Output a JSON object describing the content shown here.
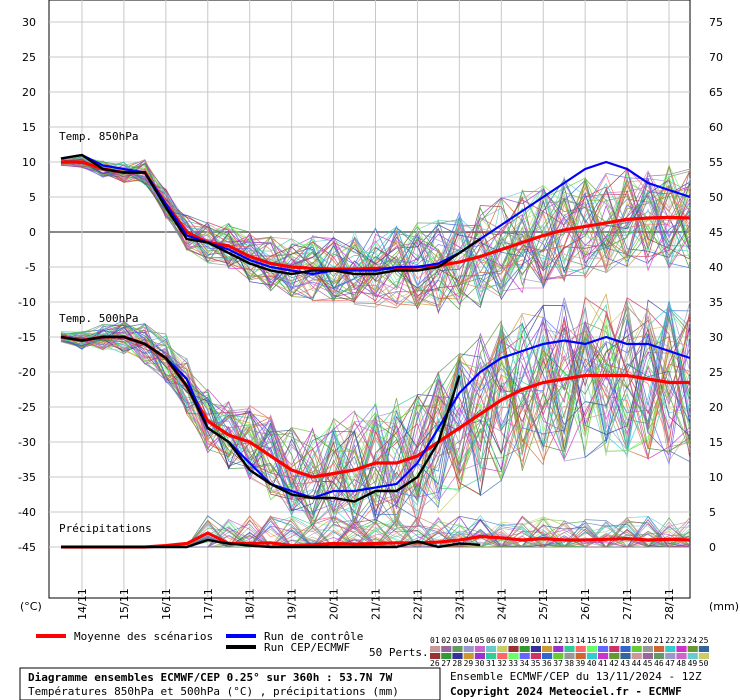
{
  "chart_data": {
    "type": "line",
    "left_axis_unit": "(°C)",
    "right_axis_unit": "(mm)",
    "left_ticks": [
      30,
      25,
      20,
      15,
      10,
      5,
      0,
      -5,
      -10,
      -15,
      -20,
      -25,
      -30,
      -35,
      -40,
      -45
    ],
    "right_ticks": [
      75,
      70,
      65,
      60,
      55,
      50,
      45,
      40,
      35,
      30,
      25,
      20,
      15,
      10,
      5,
      0
    ],
    "x_labels": [
      "14/11",
      "15/11",
      "16/11",
      "17/11",
      "18/11",
      "19/11",
      "20/11",
      "21/11",
      "22/11",
      "23/11",
      "24/11",
      "25/11",
      "26/11",
      "27/11",
      "28/11"
    ],
    "panels": {
      "t850": "Temp. 850hPa",
      "t500": "Temp. 500hPa",
      "precip": "Précipitations"
    },
    "x_hours": [
      0,
      12,
      24,
      36,
      48,
      60,
      72,
      84,
      96,
      108,
      120,
      132,
      144,
      156,
      168,
      180,
      192,
      204,
      216,
      228,
      240,
      252,
      264,
      276,
      288,
      300,
      312,
      324,
      336,
      348,
      360
    ],
    "series": [
      {
        "name": "Moyenne des scénarios",
        "color": "#ff0000",
        "panel": "t850",
        "values": [
          10,
          10,
          9,
          8.5,
          8.5,
          4,
          0,
          -1.5,
          -2,
          -3.5,
          -4.5,
          -5,
          -5.2,
          -5.3,
          -5.3,
          -5.2,
          -5.2,
          -5.0,
          -4.8,
          -4.3,
          -3.5,
          -2.5,
          -1.5,
          -0.5,
          0.3,
          0.8,
          1.3,
          1.8,
          2.0,
          2.1,
          2.0
        ]
      },
      {
        "name": "Run de contrôle",
        "color": "#0000ff",
        "panel": "t850",
        "values": [
          10.5,
          11,
          9.5,
          9,
          8.5,
          4,
          -0.5,
          -1.5,
          -2.5,
          -4,
          -5,
          -5.5,
          -6,
          -5.5,
          -5.5,
          -5.5,
          -5,
          -5,
          -4.5,
          -3,
          -1,
          1,
          3,
          5,
          7,
          9,
          10,
          9,
          7,
          6,
          5
        ]
      },
      {
        "name": "Run CEP/ECMWF",
        "color": "#000000",
        "panel": "t850",
        "values": [
          10.5,
          11,
          9,
          8.5,
          8.5,
          3.5,
          -1,
          -1.5,
          -3,
          -4.5,
          -5.5,
          -6,
          -5.5,
          -5.5,
          -6,
          -6,
          -5.5,
          -5.5,
          -5,
          -3,
          -1
        ]
      },
      {
        "name": "Moyenne des scénarios",
        "color": "#ff0000",
        "panel": "t500",
        "values": [
          -15,
          -15.5,
          -15,
          -15,
          -16,
          -18,
          -22,
          -27,
          -29,
          -30,
          -32,
          -34,
          -35,
          -34.5,
          -34,
          -33,
          -33,
          -32,
          -30,
          -28,
          -26,
          -24,
          -22.5,
          -21.5,
          -21,
          -20.5,
          -20.5,
          -20.5,
          -21,
          -21.5,
          -21.5
        ]
      },
      {
        "name": "Run de contrôle",
        "color": "#0000ff",
        "panel": "t500",
        "values": [
          -15,
          -15.5,
          -15,
          -15,
          -16,
          -18,
          -21,
          -28,
          -30,
          -33,
          -36,
          -37,
          -38,
          -37,
          -37,
          -36.5,
          -36,
          -33,
          -28,
          -23,
          -20,
          -18,
          -17,
          -16,
          -15.5,
          -16,
          -15,
          -16,
          -16,
          -17,
          -18
        ]
      },
      {
        "name": "Run CEP/ECMWF",
        "color": "#000000",
        "panel": "t500",
        "values": [
          -15,
          -15.5,
          -15,
          -15,
          -16,
          -18,
          -22,
          -28,
          -30,
          -34,
          -36,
          -37.5,
          -38,
          -38,
          -38.5,
          -37,
          -37,
          -35,
          -30,
          -20.5
        ]
      },
      {
        "name": "Moyenne des scénarios",
        "color": "#ff0000",
        "panel": "precip",
        "values": [
          0,
          0,
          0,
          0,
          0,
          0.2,
          0.5,
          2.0,
          0.5,
          0.5,
          0.6,
          0.2,
          0.3,
          0.5,
          0.4,
          0.5,
          0.6,
          0.6,
          0.7,
          1.0,
          1.5,
          1.3,
          1.0,
          1.2,
          1.0,
          1.0,
          1.1,
          1.2,
          1.0,
          1.1,
          1.0
        ]
      },
      {
        "name": "Run CEP/ECMWF",
        "color": "#000000",
        "panel": "precip",
        "values": [
          0,
          0,
          0,
          0,
          0,
          0,
          0,
          1.0,
          0.5,
          0.2,
          0,
          0,
          0,
          0,
          0,
          0,
          0,
          0.8,
          0,
          0.5,
          0.3
        ]
      }
    ]
  },
  "legend": {
    "mean_label": "Moyenne des scénarios",
    "control_label": "Run de contrôle",
    "ecmwf_label": "Run CEP/ECMWF",
    "perts_label": "50 Perts.",
    "pert_numbers_row1": [
      "01",
      "02",
      "03",
      "04",
      "05",
      "06",
      "07",
      "08",
      "09",
      "10",
      "11",
      "12",
      "13",
      "14",
      "15",
      "16",
      "17",
      "18",
      "19",
      "20",
      "21",
      "22",
      "23",
      "24",
      "25"
    ],
    "pert_numbers_row2": [
      "26",
      "27",
      "28",
      "29",
      "30",
      "31",
      "32",
      "33",
      "34",
      "35",
      "36",
      "37",
      "38",
      "39",
      "40",
      "41",
      "42",
      "43",
      "44",
      "45",
      "46",
      "47",
      "48",
      "49",
      "50"
    ],
    "pert_colors": [
      "#cc9999",
      "#996699",
      "#669966",
      "#9999cc",
      "#cc66cc",
      "#66cccc",
      "#cccc66",
      "#993333",
      "#339933",
      "#333399",
      "#cc9933",
      "#9933cc",
      "#33cc99",
      "#ff6666",
      "#66ff66",
      "#6666ff",
      "#cc3366",
      "#3366cc",
      "#66cc33",
      "#999999",
      "#cc6633",
      "#33cccc",
      "#cc33cc",
      "#669933",
      "#336699"
    ]
  },
  "footer": {
    "title": "Diagramme ensembles ECMWF/CEP 0.25° sur 360h : 53.7N 7W",
    "subtitle": "Températures 850hPa et 500hPa (°C) , précipitations (mm)",
    "run_info": "Ensemble ECMWF/CEP du 13/11/2024 - 12Z",
    "copyright": "Copyright 2024 Meteociel.fr - ECMWF"
  }
}
